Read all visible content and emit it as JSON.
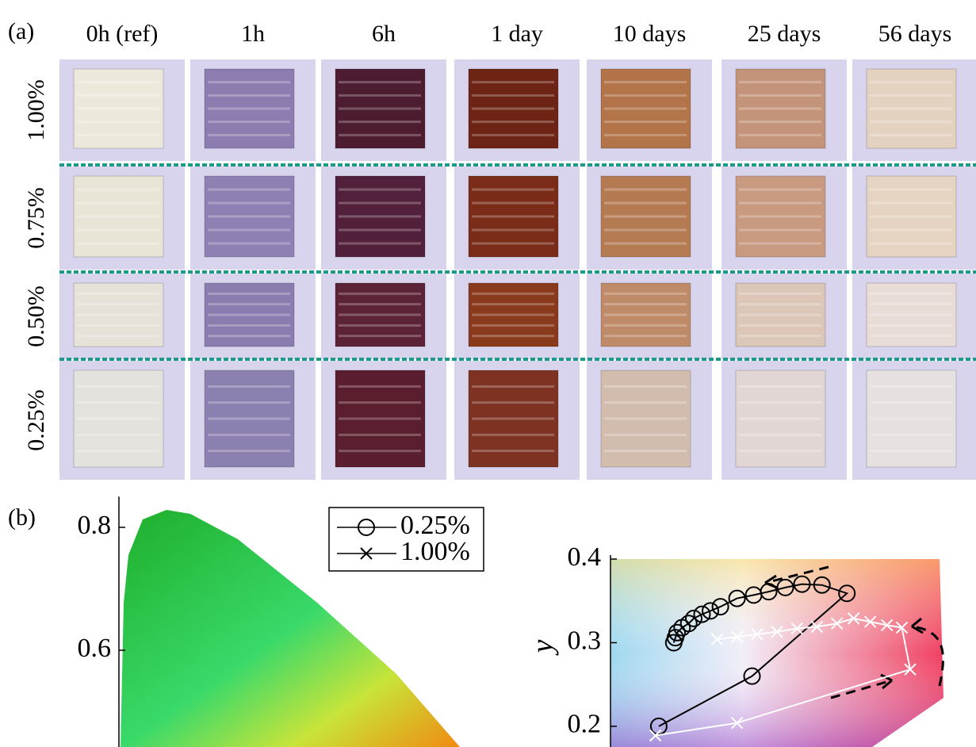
{
  "panel_a": {
    "label": "(a)",
    "columns": [
      "0h (ref)",
      "1h",
      "6h",
      "1 day",
      "10 days",
      "25 days",
      "56 days"
    ],
    "rows": [
      "1.00%",
      "0.75%",
      "0.50%",
      "0.25%"
    ]
  },
  "panel_b": {
    "label": "(b)"
  },
  "chart_data": [
    {
      "type": "chromaticity",
      "ylim": [
        0.44,
        0.85
      ],
      "yticks": [
        0.8,
        0.6
      ]
    },
    {
      "type": "line",
      "y_label": "y",
      "xlim": [
        0.25,
        0.45
      ],
      "ylim": [
        0.18,
        0.4
      ],
      "yticks": [
        0.4,
        0.3,
        0.2
      ],
      "series": [
        {
          "name": "0.25%",
          "color": "#000000",
          "marker": "circle",
          "x": [
            0.279,
            0.335,
            0.392,
            0.377,
            0.365,
            0.355,
            0.345,
            0.336,
            0.326,
            0.316,
            0.31,
            0.305,
            0.3,
            0.297,
            0.293,
            0.29,
            0.289,
            0.288
          ],
          "values": [
            0.2,
            0.26,
            0.359,
            0.369,
            0.37,
            0.366,
            0.361,
            0.357,
            0.353,
            0.343,
            0.338,
            0.334,
            0.329,
            0.323,
            0.318,
            0.312,
            0.306,
            0.3
          ]
        },
        {
          "name": "1.00%",
          "color": "#ffffff",
          "marker": "x",
          "x": [
            0.277,
            0.326,
            0.43,
            0.425,
            0.416,
            0.406,
            0.396,
            0.386,
            0.374,
            0.362,
            0.35,
            0.338,
            0.326,
            0.314
          ],
          "values": [
            0.189,
            0.204,
            0.268,
            0.318,
            0.321,
            0.325,
            0.329,
            0.323,
            0.319,
            0.317,
            0.313,
            0.31,
            0.307,
            0.304
          ]
        }
      ]
    }
  ]
}
